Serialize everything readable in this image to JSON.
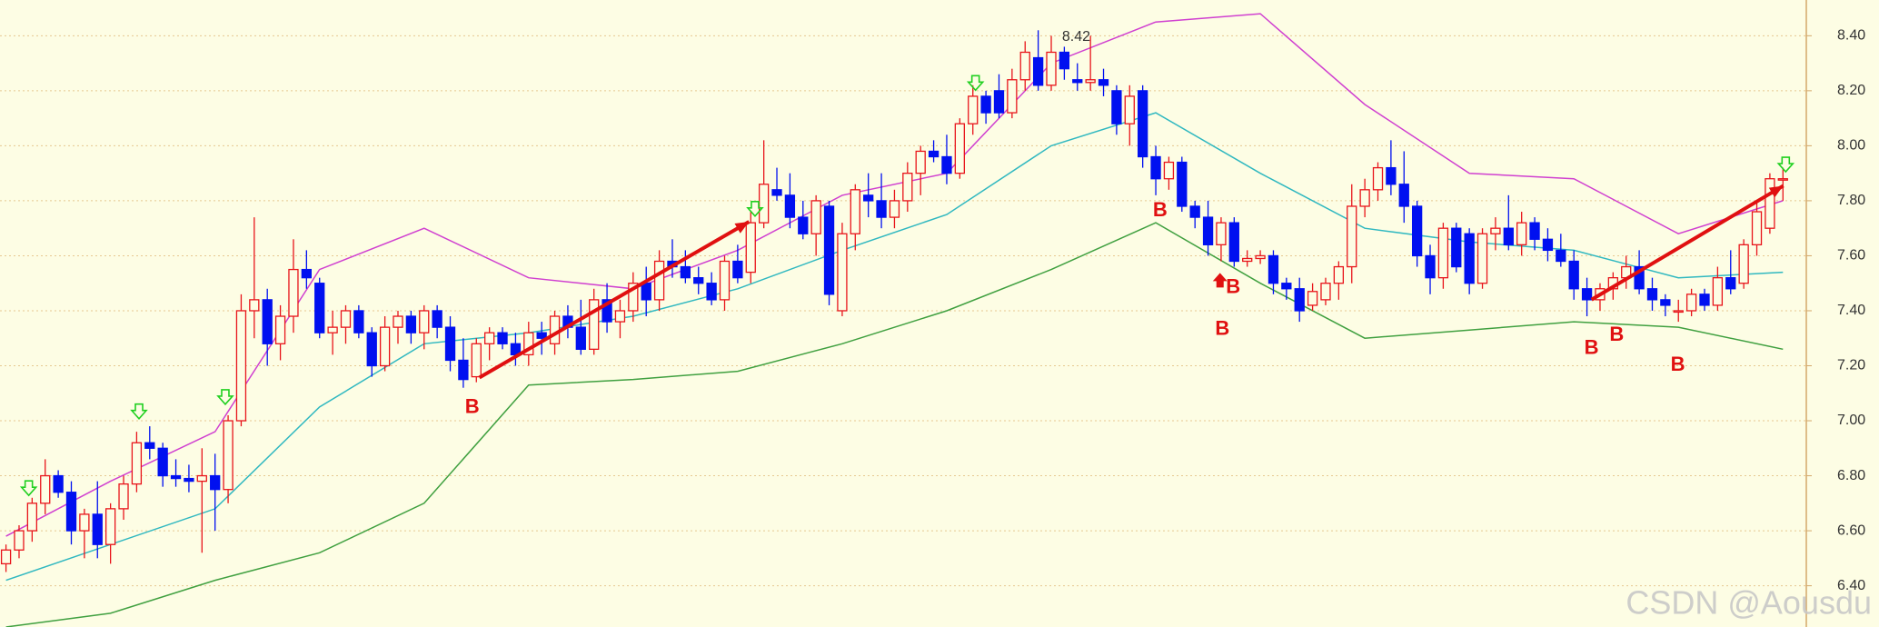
{
  "chart_data": {
    "type": "candlestick",
    "ylim": [
      6.25,
      8.53
    ],
    "yticks": [
      {
        "value": 6.4,
        "label": "6.40"
      },
      {
        "value": 6.6,
        "label": "6.60"
      },
      {
        "value": 6.8,
        "label": "6.80"
      },
      {
        "value": 7.0,
        "label": "7.00"
      },
      {
        "value": 7.2,
        "label": "7.20"
      },
      {
        "value": 7.4,
        "label": "7.40"
      },
      {
        "value": 7.6,
        "label": "7.60"
      },
      {
        "value": 7.8,
        "label": "7.80"
      },
      {
        "value": 8.0,
        "label": "8.00"
      },
      {
        "value": 8.2,
        "label": "8.20"
      },
      {
        "value": 8.4,
        "label": "8.40"
      }
    ],
    "grid": true,
    "up_color": "#e8141a",
    "down_color": "#0010f0",
    "ohlc": [
      [
        6.48,
        6.55,
        6.45,
        6.53
      ],
      [
        6.53,
        6.62,
        6.5,
        6.6
      ],
      [
        6.6,
        6.72,
        6.56,
        6.7
      ],
      [
        6.7,
        6.86,
        6.66,
        6.8
      ],
      [
        6.8,
        6.82,
        6.72,
        6.74
      ],
      [
        6.74,
        6.78,
        6.55,
        6.6
      ],
      [
        6.6,
        6.68,
        6.5,
        6.66
      ],
      [
        6.66,
        6.78,
        6.5,
        6.55
      ],
      [
        6.55,
        6.7,
        6.48,
        6.68
      ],
      [
        6.68,
        6.8,
        6.64,
        6.77
      ],
      [
        6.77,
        6.96,
        6.74,
        6.92
      ],
      [
        6.92,
        6.98,
        6.86,
        6.9
      ],
      [
        6.9,
        6.92,
        6.76,
        6.8
      ],
      [
        6.8,
        6.86,
        6.76,
        6.79
      ],
      [
        6.79,
        6.84,
        6.74,
        6.78
      ],
      [
        6.78,
        6.9,
        6.52,
        6.8
      ],
      [
        6.8,
        6.88,
        6.6,
        6.75
      ],
      [
        6.75,
        7.02,
        6.7,
        7.0
      ],
      [
        7.0,
        7.46,
        6.98,
        7.4
      ],
      [
        7.4,
        7.74,
        7.3,
        7.44
      ],
      [
        7.44,
        7.48,
        7.2,
        7.28
      ],
      [
        7.28,
        7.42,
        7.22,
        7.38
      ],
      [
        7.38,
        7.66,
        7.32,
        7.55
      ],
      [
        7.55,
        7.62,
        7.48,
        7.52
      ],
      [
        7.5,
        7.52,
        7.3,
        7.32
      ],
      [
        7.32,
        7.4,
        7.24,
        7.34
      ],
      [
        7.34,
        7.42,
        7.28,
        7.4
      ],
      [
        7.4,
        7.42,
        7.3,
        7.32
      ],
      [
        7.32,
        7.34,
        7.16,
        7.2
      ],
      [
        7.2,
        7.38,
        7.18,
        7.34
      ],
      [
        7.34,
        7.4,
        7.28,
        7.38
      ],
      [
        7.38,
        7.4,
        7.28,
        7.32
      ],
      [
        7.32,
        7.42,
        7.26,
        7.4
      ],
      [
        7.4,
        7.42,
        7.3,
        7.34
      ],
      [
        7.34,
        7.38,
        7.18,
        7.22
      ],
      [
        7.22,
        7.3,
        7.12,
        7.15
      ],
      [
        7.16,
        7.3,
        7.14,
        7.28
      ],
      [
        7.28,
        7.34,
        7.22,
        7.32
      ],
      [
        7.32,
        7.34,
        7.26,
        7.28
      ],
      [
        7.28,
        7.32,
        7.2,
        7.24
      ],
      [
        7.24,
        7.36,
        7.2,
        7.32
      ],
      [
        7.32,
        7.36,
        7.24,
        7.3
      ],
      [
        7.28,
        7.4,
        7.24,
        7.38
      ],
      [
        7.38,
        7.42,
        7.3,
        7.34
      ],
      [
        7.34,
        7.44,
        7.24,
        7.26
      ],
      [
        7.26,
        7.48,
        7.24,
        7.44
      ],
      [
        7.44,
        7.5,
        7.32,
        7.36
      ],
      [
        7.36,
        7.44,
        7.3,
        7.4
      ],
      [
        7.4,
        7.54,
        7.36,
        7.5
      ],
      [
        7.5,
        7.56,
        7.38,
        7.44
      ],
      [
        7.44,
        7.62,
        7.4,
        7.58
      ],
      [
        7.58,
        7.66,
        7.52,
        7.56
      ],
      [
        7.56,
        7.62,
        7.5,
        7.52
      ],
      [
        7.52,
        7.56,
        7.46,
        7.5
      ],
      [
        7.5,
        7.54,
        7.42,
        7.44
      ],
      [
        7.44,
        7.6,
        7.4,
        7.58
      ],
      [
        7.58,
        7.64,
        7.5,
        7.52
      ],
      [
        7.54,
        7.76,
        7.5,
        7.72
      ],
      [
        7.72,
        8.02,
        7.7,
        7.86
      ],
      [
        7.84,
        7.92,
        7.8,
        7.82
      ],
      [
        7.82,
        7.9,
        7.7,
        7.74
      ],
      [
        7.74,
        7.8,
        7.66,
        7.68
      ],
      [
        7.68,
        7.82,
        7.6,
        7.8
      ],
      [
        7.78,
        7.8,
        7.42,
        7.46
      ],
      [
        7.4,
        7.72,
        7.38,
        7.68
      ],
      [
        7.68,
        7.86,
        7.62,
        7.84
      ],
      [
        7.82,
        7.9,
        7.74,
        7.8
      ],
      [
        7.8,
        7.9,
        7.7,
        7.74
      ],
      [
        7.74,
        7.84,
        7.7,
        7.8
      ],
      [
        7.8,
        7.94,
        7.76,
        7.9
      ],
      [
        7.9,
        8.0,
        7.82,
        7.98
      ],
      [
        7.98,
        8.02,
        7.94,
        7.96
      ],
      [
        7.96,
        8.04,
        7.86,
        7.9
      ],
      [
        7.9,
        8.1,
        7.88,
        8.08
      ],
      [
        8.08,
        8.22,
        8.04,
        8.18
      ],
      [
        8.18,
        8.2,
        8.08,
        8.12
      ],
      [
        8.2,
        8.26,
        8.1,
        8.12
      ],
      [
        8.12,
        8.28,
        8.1,
        8.24
      ],
      [
        8.24,
        8.38,
        8.2,
        8.34
      ],
      [
        8.32,
        8.42,
        8.2,
        8.22
      ],
      [
        8.22,
        8.4,
        8.2,
        8.34
      ],
      [
        8.34,
        8.36,
        8.24,
        8.28
      ],
      [
        8.24,
        8.3,
        8.2,
        8.23
      ],
      [
        8.23,
        8.4,
        8.2,
        8.24
      ],
      [
        8.24,
        8.28,
        8.18,
        8.22
      ],
      [
        8.2,
        8.22,
        8.04,
        8.08
      ],
      [
        8.08,
        8.22,
        8.0,
        8.18
      ],
      [
        8.2,
        8.22,
        7.92,
        7.96
      ],
      [
        7.96,
        8.0,
        7.82,
        7.88
      ],
      [
        7.88,
        7.96,
        7.84,
        7.94
      ],
      [
        7.94,
        7.96,
        7.76,
        7.78
      ],
      [
        7.78,
        7.8,
        7.7,
        7.74
      ],
      [
        7.74,
        7.8,
        7.6,
        7.64
      ],
      [
        7.64,
        7.74,
        7.58,
        7.72
      ],
      [
        7.72,
        7.74,
        7.56,
        7.58
      ],
      [
        7.58,
        7.62,
        7.56,
        7.59
      ],
      [
        7.59,
        7.62,
        7.57,
        7.6
      ],
      [
        7.6,
        7.62,
        7.46,
        7.5
      ],
      [
        7.5,
        7.52,
        7.44,
        7.48
      ],
      [
        7.48,
        7.52,
        7.36,
        7.4
      ],
      [
        7.42,
        7.5,
        7.4,
        7.47
      ],
      [
        7.44,
        7.52,
        7.42,
        7.5
      ],
      [
        7.5,
        7.58,
        7.44,
        7.56
      ],
      [
        7.56,
        7.86,
        7.5,
        7.78
      ],
      [
        7.78,
        7.88,
        7.74,
        7.84
      ],
      [
        7.84,
        7.94,
        7.8,
        7.92
      ],
      [
        7.92,
        8.02,
        7.82,
        7.86
      ],
      [
        7.86,
        7.98,
        7.72,
        7.78
      ],
      [
        7.78,
        7.8,
        7.56,
        7.6
      ],
      [
        7.6,
        7.64,
        7.46,
        7.52
      ],
      [
        7.52,
        7.72,
        7.48,
        7.7
      ],
      [
        7.7,
        7.72,
        7.54,
        7.56
      ],
      [
        7.68,
        7.7,
        7.46,
        7.5
      ],
      [
        7.5,
        7.7,
        7.48,
        7.68
      ],
      [
        7.68,
        7.74,
        7.62,
        7.7
      ],
      [
        7.7,
        7.82,
        7.62,
        7.64
      ],
      [
        7.64,
        7.76,
        7.6,
        7.72
      ],
      [
        7.72,
        7.74,
        7.62,
        7.66
      ],
      [
        7.66,
        7.7,
        7.58,
        7.62
      ],
      [
        7.62,
        7.68,
        7.56,
        7.58
      ],
      [
        7.58,
        7.62,
        7.44,
        7.48
      ],
      [
        7.48,
        7.52,
        7.38,
        7.44
      ],
      [
        7.44,
        7.5,
        7.4,
        7.48
      ],
      [
        7.48,
        7.54,
        7.44,
        7.52
      ],
      [
        7.52,
        7.6,
        7.48,
        7.56
      ],
      [
        7.56,
        7.62,
        7.46,
        7.48
      ],
      [
        7.48,
        7.52,
        7.4,
        7.44
      ],
      [
        7.44,
        7.46,
        7.38,
        7.42
      ],
      [
        7.4,
        7.44,
        7.36,
        7.4
      ],
      [
        7.4,
        7.48,
        7.38,
        7.46
      ],
      [
        7.46,
        7.48,
        7.4,
        7.42
      ],
      [
        7.42,
        7.56,
        7.4,
        7.52
      ],
      [
        7.52,
        7.62,
        7.46,
        7.48
      ],
      [
        7.5,
        7.66,
        7.48,
        7.64
      ],
      [
        7.64,
        7.8,
        7.6,
        7.76
      ],
      [
        7.7,
        7.9,
        7.68,
        7.88
      ],
      [
        7.88,
        7.92,
        7.8,
        7.88
      ]
    ],
    "bands": [
      {
        "color": "#d040d0",
        "x": [
          0,
          8,
          16,
          24,
          32,
          40,
          48,
          56,
          64,
          72,
          80,
          88,
          96,
          104,
          112,
          120,
          128,
          136
        ],
        "values": [
          6.58,
          6.78,
          6.96,
          7.55,
          7.7,
          7.52,
          7.48,
          7.62,
          7.82,
          7.9,
          8.3,
          8.45,
          8.48,
          8.15,
          7.9,
          7.88,
          7.68,
          7.8
        ]
      },
      {
        "color": "#30b8c0",
        "x": [
          0,
          8,
          16,
          24,
          32,
          40,
          48,
          56,
          64,
          72,
          80,
          88,
          96,
          104,
          112,
          120,
          128,
          136
        ],
        "values": [
          6.42,
          6.55,
          6.68,
          7.05,
          7.28,
          7.32,
          7.38,
          7.48,
          7.62,
          7.75,
          8.0,
          8.12,
          7.9,
          7.7,
          7.65,
          7.62,
          7.52,
          7.54
        ]
      },
      {
        "color": "#40a040",
        "x": [
          0,
          8,
          16,
          24,
          32,
          40,
          48,
          56,
          64,
          72,
          80,
          88,
          96,
          104,
          112,
          120,
          128,
          136
        ],
        "values": [
          6.25,
          6.3,
          6.42,
          6.52,
          6.7,
          7.13,
          7.15,
          7.18,
          7.28,
          7.4,
          7.55,
          7.72,
          7.5,
          7.3,
          7.33,
          7.36,
          7.34,
          7.26
        ]
      }
    ],
    "annotations": [
      "B",
      "B",
      "B",
      "B",
      "B",
      "B",
      "B",
      "8.42"
    ],
    "watermark": "CSDN @Aousdu"
  }
}
